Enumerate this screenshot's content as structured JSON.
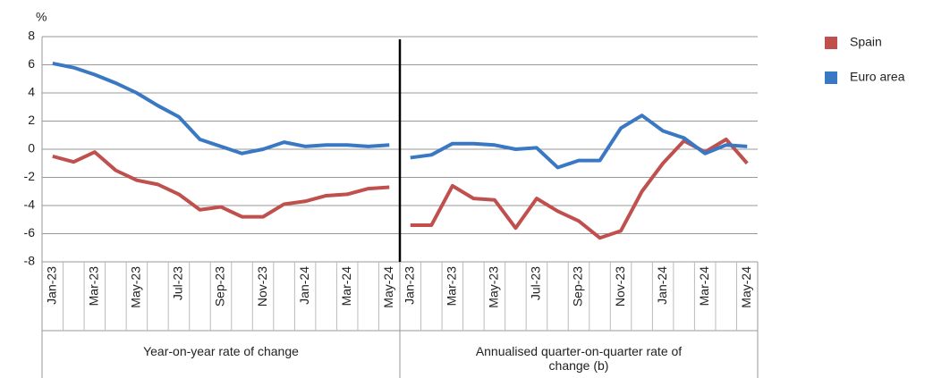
{
  "chart_data": {
    "type": "line",
    "y_label": "%",
    "ylim": [
      -8,
      8
    ],
    "yticks": [
      -8,
      -6,
      -4,
      -2,
      0,
      2,
      4,
      6,
      8
    ],
    "grid": true,
    "categories": [
      "Jan-23",
      null,
      "Mar-23",
      null,
      "May-23",
      null,
      "Jul-23",
      null,
      "Sep-23",
      null,
      "Nov-23",
      null,
      "Jan-24",
      null,
      "Mar-24",
      null,
      "May-24"
    ],
    "panels": [
      "Year-on-year rate of change",
      "Annualised quarter-on-quarter rate of change (b)"
    ],
    "legend": "right",
    "series": [
      {
        "name": "Spain",
        "color": "#c0504d",
        "values": [
          [
            -0.5,
            -0.9,
            -0.2,
            -1.5,
            -2.2,
            -2.5,
            -3.2,
            -4.3,
            -4.1,
            -4.8,
            -4.8,
            -3.9,
            -3.7,
            -3.3,
            -3.2,
            -2.8,
            -2.7
          ],
          [
            -5.4,
            -5.4,
            -2.6,
            -3.5,
            -3.6,
            -5.6,
            -3.5,
            -4.4,
            -5.1,
            -6.3,
            -5.8,
            -3.0,
            -1.0,
            0.6,
            -0.2,
            0.7,
            -1.0
          ]
        ]
      },
      {
        "name": "Euro area",
        "color": "#3a78c3",
        "values": [
          [
            6.1,
            5.8,
            5.3,
            4.7,
            4.0,
            3.1,
            2.3,
            0.7,
            0.2,
            -0.3,
            0.0,
            0.5,
            0.2,
            0.3,
            0.3,
            0.2,
            0.3
          ],
          [
            -0.6,
            -0.4,
            0.4,
            0.4,
            0.3,
            0.0,
            0.1,
            -1.3,
            -0.8,
            -0.8,
            1.5,
            2.4,
            1.3,
            0.8,
            -0.3,
            0.3,
            0.2
          ]
        ]
      }
    ]
  }
}
